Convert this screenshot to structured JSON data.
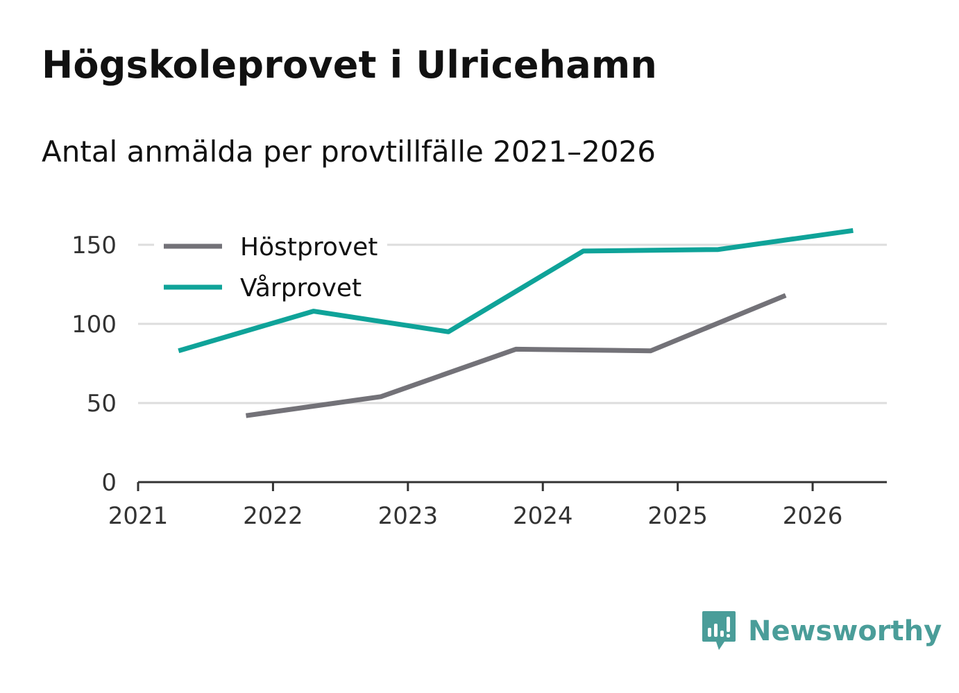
{
  "header": {
    "title": "Högskoleprovet i Ulricehamn",
    "subtitle": "Antal anmälda per provtillfälle 2021–2026"
  },
  "brand": {
    "name": "Newsworthy",
    "icon": "newsworthy-logo-icon",
    "color": "#4a9d99"
  },
  "chart_data": {
    "type": "line",
    "title": "Högskoleprovet i Ulricehamn",
    "subtitle": "Antal anmälda per provtillfälle 2021–2026",
    "xlabel": "",
    "ylabel": "",
    "xlim": [
      2021,
      2026.55
    ],
    "ylim": [
      0,
      160
    ],
    "x_ticks": [
      2021,
      2022,
      2023,
      2024,
      2025,
      2026
    ],
    "y_ticks": [
      0,
      50,
      100,
      150
    ],
    "grid": true,
    "legend_position": "top-left",
    "series": [
      {
        "name": "Höstprovet",
        "color": "#737278",
        "x": [
          2021.8,
          2022.8,
          2023.8,
          2024.8,
          2025.8
        ],
        "values": [
          42,
          54,
          84,
          83,
          118
        ]
      },
      {
        "name": "Vårprovet",
        "color": "#0fa399",
        "x": [
          2021.3,
          2022.3,
          2023.3,
          2024.3,
          2025.3,
          2026.3
        ],
        "values": [
          83,
          108,
          95,
          146,
          147,
          159
        ]
      }
    ]
  }
}
